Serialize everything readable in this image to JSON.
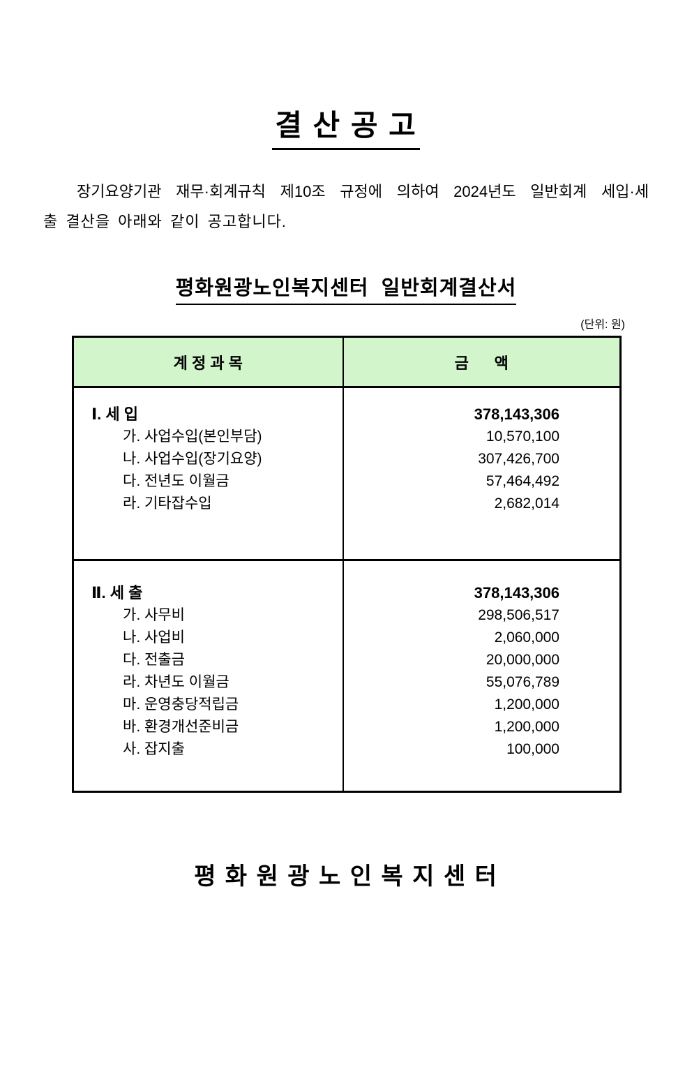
{
  "document": {
    "title": "결 산 공 고",
    "intro": {
      "line1": "장기요양기관 재무·회계규칙 제10조 규정에 의하여 2024년도 일반회계 세입·세",
      "line2": "출 결산을 아래와 같이 공고합니다."
    },
    "subtitle": "평화원광노인복지센터  일반회계결산서",
    "unit_label": "(단위: 원)",
    "footer": "평 화 원 광 노 인 복 지 센 터"
  },
  "table": {
    "header_bg": "#d2f5cc",
    "headers": {
      "account": "계 정 과 목",
      "amount": "금      액"
    },
    "sections": [
      {
        "title": "Ⅰ. 세 입",
        "total": "378,143,306",
        "rows": [
          {
            "label": "가. 사업수입(본인부담)",
            "amount": "10,570,100"
          },
          {
            "label": "나. 사업수입(장기요양)",
            "amount": "307,426,700"
          },
          {
            "label": "다. 전년도 이월금",
            "amount": "57,464,492"
          },
          {
            "label": "라. 기타잡수입",
            "amount": "2,682,014"
          }
        ]
      },
      {
        "title": "Ⅱ. 세 출",
        "total": "378,143,306",
        "rows": [
          {
            "label": "가. 사무비",
            "amount": "298,506,517"
          },
          {
            "label": "나. 사업비",
            "amount": "2,060,000"
          },
          {
            "label": "다. 전출금",
            "amount": "20,000,000"
          },
          {
            "label": "라. 차년도 이월금",
            "amount": "55,076,789"
          },
          {
            "label": "마. 운영충당적립금",
            "amount": "1,200,000"
          },
          {
            "label": "바. 환경개선준비금",
            "amount": "1,200,000"
          },
          {
            "label": "사. 잡지출",
            "amount": "100,000"
          }
        ]
      }
    ]
  }
}
